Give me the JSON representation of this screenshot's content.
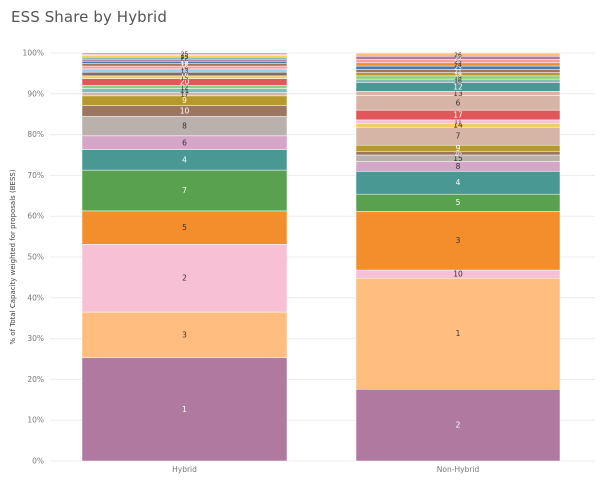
{
  "title": "ESS Share by Hybrid",
  "chart_data": {
    "type": "bar",
    "stacked": true,
    "normalized": true,
    "title": "ESS Share by Hybrid",
    "xlabel": "",
    "ylabel": "% of Total Capacity weighted for proposals (BESS)",
    "yticks": [
      "0%",
      "10%",
      "20%",
      "30%",
      "40%",
      "50%",
      "60%",
      "70%",
      "80%",
      "90%",
      "100%"
    ],
    "ylim": [
      0,
      100
    ],
    "grid": true,
    "categories": [
      "Hybrid",
      "Non-Hybrid"
    ],
    "bars": [
      {
        "category": "Hybrid",
        "segments": [
          {
            "label": "1",
            "value": 25.3,
            "color": "#b0799f"
          },
          {
            "label": "3",
            "value": 11.2,
            "color": "#ffbd7f"
          },
          {
            "label": "2",
            "value": 16.6,
            "color": "#f8c0d4"
          },
          {
            "label": "5",
            "value": 8.2,
            "color": "#f28e2c"
          },
          {
            "label": "7",
            "value": 10.0,
            "color": "#59a14f"
          },
          {
            "label": "4",
            "value": 5.0,
            "color": "#499894"
          },
          {
            "label": "6",
            "value": 3.4,
            "color": "#d4a6c8"
          },
          {
            "label": "8",
            "value": 4.8,
            "color": "#bab0ac"
          },
          {
            "label": "10",
            "value": 2.6,
            "color": "#9d7660"
          },
          {
            "label": "9",
            "value": 2.4,
            "color": "#b6992d"
          },
          {
            "label": "17",
            "value": 0.8,
            "color": "#d7b5a6"
          },
          {
            "label": "11",
            "value": 1.0,
            "color": "#86bcb6"
          },
          {
            "label": "12",
            "value": 0.8,
            "color": "#8cd17d"
          },
          {
            "label": "20",
            "value": 1.6,
            "color": "#e15759"
          },
          {
            "label": "15",
            "value": 0.7,
            "color": "#f1ce63"
          },
          {
            "label": "16",
            "value": 0.9,
            "color": "#79706e"
          },
          {
            "label": "13",
            "value": 0.8,
            "color": "#a0cbe8"
          },
          {
            "label": "14",
            "value": 0.7,
            "color": "#ff9d9a"
          },
          {
            "label": "18",
            "value": 0.6,
            "color": "#9c755f"
          },
          {
            "label": "19",
            "value": 0.6,
            "color": "#4e79a7"
          },
          {
            "label": "21",
            "value": 0.5,
            "color": "#b07aa1"
          },
          {
            "label": "22",
            "value": 0.5,
            "color": "#76b7b2"
          },
          {
            "label": "23",
            "value": 0.4,
            "color": "#edc948"
          },
          {
            "label": "24",
            "value": 0.3,
            "color": "#ff9da7"
          },
          {
            "label": "25",
            "value": 0.3,
            "color": "#9c9c9c"
          }
        ]
      },
      {
        "category": "Non-Hybrid",
        "segments": [
          {
            "label": "2",
            "value": 17.6,
            "color": "#b0799f"
          },
          {
            "label": "1",
            "value": 27.2,
            "color": "#ffbd7f"
          },
          {
            "label": "10",
            "value": 2.0,
            "color": "#f8c0d4"
          },
          {
            "label": "3",
            "value": 14.4,
            "color": "#f28e2c"
          },
          {
            "label": "5",
            "value": 4.2,
            "color": "#59a14f"
          },
          {
            "label": "4",
            "value": 5.6,
            "color": "#499894"
          },
          {
            "label": "8",
            "value": 2.4,
            "color": "#d4a6c8"
          },
          {
            "label": "15",
            "value": 1.6,
            "color": "#bab0ac"
          },
          {
            "label": "20",
            "value": 0.8,
            "color": "#9d7660"
          },
          {
            "label": "9",
            "value": 1.6,
            "color": "#b6992d"
          },
          {
            "label": "7",
            "value": 4.4,
            "color": "#d7b5a6"
          },
          {
            "label": "14",
            "value": 1.0,
            "color": "#f1ce63"
          },
          {
            "label": "11",
            "value": 0.8,
            "color": "#f8c0d4"
          },
          {
            "label": "17",
            "value": 2.4,
            "color": "#e15759"
          },
          {
            "label": "6",
            "value": 3.6,
            "color": "#d7b5a6"
          },
          {
            "label": "13",
            "value": 1.0,
            "color": "#d7b5a6"
          },
          {
            "label": "12",
            "value": 2.2,
            "color": "#499894"
          },
          {
            "label": "16",
            "value": 0.8,
            "color": "#86bcb6"
          },
          {
            "label": "18",
            "value": 0.8,
            "color": "#8cd17d"
          },
          {
            "label": "19",
            "value": 0.8,
            "color": "#b6992d"
          },
          {
            "label": "21",
            "value": 0.8,
            "color": "#9d7660"
          },
          {
            "label": "23",
            "value": 0.8,
            "color": "#4e79a7"
          },
          {
            "label": "24",
            "value": 0.8,
            "color": "#f28e2c"
          },
          {
            "label": "25",
            "value": 0.8,
            "color": "#ff9d9a"
          },
          {
            "label": "22",
            "value": 0.8,
            "color": "#b0799f"
          },
          {
            "label": "26",
            "value": 0.8,
            "color": "#ffbd7f"
          }
        ]
      }
    ]
  }
}
